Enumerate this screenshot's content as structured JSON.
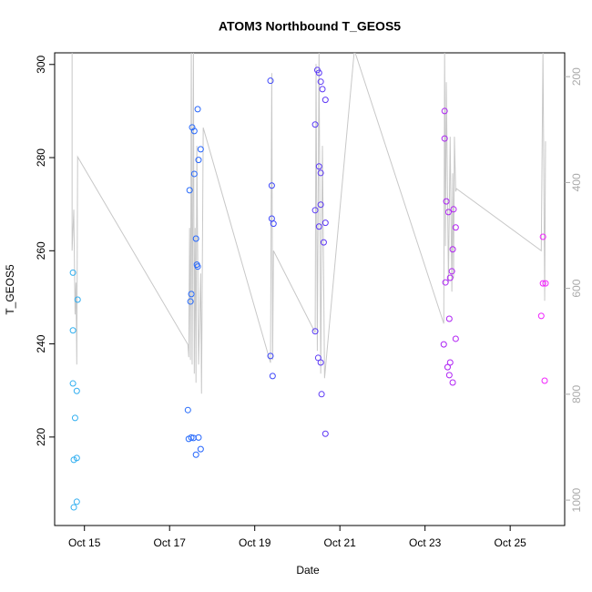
{
  "chart_data": {
    "type": "scatter",
    "title": "ATOM3 Northbound T_GEOS5",
    "x_label": "Date",
    "y_label": "T_GEOS5",
    "xlim": [
      14.3,
      26.28
    ],
    "xticks": [
      {
        "value": 15,
        "label": "Oct 15"
      },
      {
        "value": 17,
        "label": "Oct 17"
      },
      {
        "value": 19,
        "label": "Oct 19"
      },
      {
        "value": 21,
        "label": "Oct 21"
      },
      {
        "value": 23,
        "label": "Oct 23"
      },
      {
        "value": 25,
        "label": "Oct 25"
      }
    ],
    "ylim": [
      201,
      302.5
    ],
    "yticks": [
      220,
      240,
      260,
      280,
      300
    ],
    "y2lim": [
      1048,
      155
    ],
    "y2ticks": [
      200,
      400,
      600,
      800,
      1000
    ],
    "series": [
      {
        "type": "scatter",
        "color_scale": [
          "#33bbee",
          "#2255ff",
          "#8822ee",
          "#ff22ff"
        ],
        "x": [
          14.73,
          14.73,
          14.73,
          14.78,
          14.75,
          14.75,
          14.82,
          14.82,
          14.82,
          14.84,
          17.43,
          17.45,
          17.51,
          17.56,
          17.68,
          17.62,
          17.73,
          17.47,
          17.49,
          17.51,
          17.53,
          17.58,
          17.58,
          17.62,
          17.64,
          17.66,
          17.66,
          17.68,
          17.73,
          19.37,
          19.4,
          19.4,
          19.44,
          19.37,
          19.42,
          20.47,
          20.51,
          20.55,
          20.59,
          20.66,
          20.42,
          20.51,
          20.55,
          20.55,
          20.42,
          20.51,
          20.66,
          20.62,
          20.42,
          20.49,
          20.55,
          20.57,
          20.66,
          23.46,
          23.46,
          23.5,
          23.55,
          23.67,
          23.72,
          23.65,
          23.63,
          23.59,
          23.48,
          23.57,
          23.44,
          23.72,
          23.59,
          23.53,
          23.57,
          23.65,
          25.77,
          25.77,
          25.83,
          25.73,
          25.81
        ],
        "values": [
          255.3,
          242.9,
          231.5,
          224.1,
          215.1,
          204.9,
          206.1,
          215.5,
          229.9,
          249.5,
          225.8,
          219.6,
          219.9,
          219.8,
          219.9,
          216.2,
          217.4,
          273.0,
          249.1,
          250.7,
          286.5,
          285.7,
          276.5,
          262.6,
          257.0,
          256.6,
          290.4,
          279.5,
          281.8,
          296.5,
          274.0,
          266.9,
          265.8,
          237.4,
          233.1,
          298.8,
          298.2,
          296.3,
          294.7,
          292.4,
          287.1,
          278.1,
          276.7,
          269.9,
          268.7,
          265.2,
          266.0,
          261.8,
          242.7,
          237.0,
          236.0,
          229.2,
          220.7,
          290.0,
          284.1,
          270.6,
          268.3,
          268.9,
          265.0,
          260.3,
          255.6,
          254.2,
          253.2,
          245.4,
          239.9,
          241.1,
          236.0,
          235.0,
          233.3,
          231.7,
          263.0,
          253.0,
          253.0,
          246.0,
          232.1
        ]
      },
      {
        "type": "line",
        "axis": "y2",
        "color": "#c8c8c8",
        "x": [
          14.71,
          14.71,
          14.75,
          14.78,
          14.8,
          14.82,
          14.84,
          17.43,
          17.45,
          17.47,
          17.49,
          17.51,
          17.53,
          17.56,
          17.58,
          17.6,
          17.62,
          17.64,
          17.68,
          17.73,
          17.75,
          17.79,
          19.37,
          19.4,
          19.42,
          19.44,
          20.42,
          20.44,
          20.47,
          20.51,
          20.55,
          20.59,
          20.64,
          21.34,
          23.44,
          23.46,
          23.48,
          23.5,
          23.55,
          23.59,
          23.63,
          23.65,
          23.67,
          23.69,
          23.72,
          23.74,
          25.73,
          25.77,
          25.81,
          25.83
        ],
        "values": [
          150,
          528.8,
          451.3,
          649.2,
          589,
          743.9,
          351.5,
          706,
          730,
          485.7,
          735.3,
          150,
          743.9,
          150,
          761.1,
          485.7,
          778.3,
          330.8,
          743.9,
          571.8,
          799,
          296.4,
          740.4,
          193.2,
          735.3,
          528.8,
          683.7,
          176,
          718,
          150,
          761.1,
          330.8,
          769.7,
          150,
          666.4,
          150,
          520.2,
          210.4,
          589,
          313.6,
          606.2,
          382.5,
          580.4,
          313.6,
          416.9,
          411.7,
          528.8,
          150,
          623.4,
          322.2
        ]
      }
    ]
  }
}
